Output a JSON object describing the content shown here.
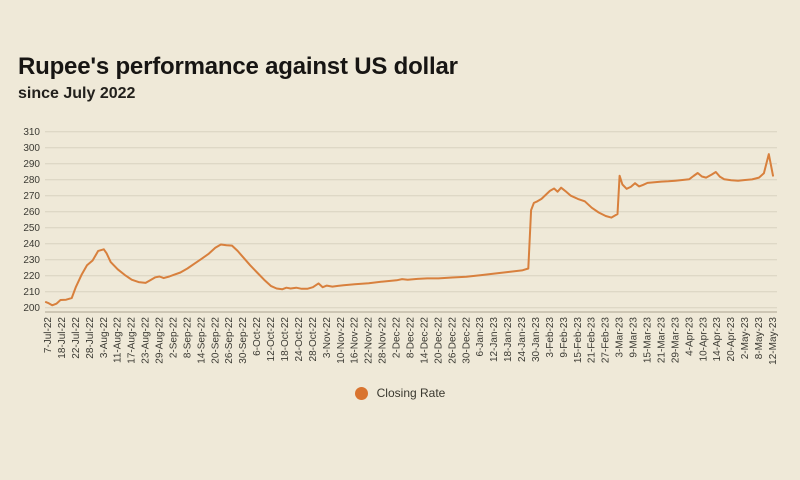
{
  "page": {
    "background": "#efe9d8"
  },
  "header": {
    "title": "Rupee's performance against US dollar",
    "subtitle": "since July 2022"
  },
  "legend": {
    "label": "Closing Rate",
    "marker_color": "#d9742f"
  },
  "chart_data": {
    "type": "line",
    "title": "Rupee's performance against US dollar",
    "subtitle": "since July 2022",
    "xlabel": "",
    "ylabel": "",
    "ylim": [
      200,
      310
    ],
    "y_ticks": [
      200,
      210,
      220,
      230,
      240,
      250,
      260,
      270,
      280,
      290,
      300,
      310
    ],
    "grid": "horizontal",
    "legend_position": "bottom-center",
    "line_color": "#d8803d",
    "grid_color": "#d8d2c0",
    "axis_color": "#b9b29e",
    "tick_text_color": "#3b3a33",
    "categories": [
      "7-Jul-22",
      "18-Jul-22",
      "22-Jul-22",
      "28-Jul-22",
      "3-Aug-22",
      "11-Aug-22",
      "17-Aug-22",
      "23-Aug-22",
      "29-Aug-22",
      "2-Sep-22",
      "8-Sep-22",
      "14-Sep-22",
      "20-Sep-22",
      "26-Sep-22",
      "30-Sep-22",
      "6-Oct-22",
      "12-Oct-22",
      "18-Oct-22",
      "24-Oct-22",
      "28-Oct-22",
      "3-Nov-22",
      "10-Nov-22",
      "16-Nov-22",
      "22-Nov-22",
      "28-Nov-22",
      "2-Dec-22",
      "8-Dec-22",
      "14-Dec-22",
      "20-Dec-22",
      "26-Dec-22",
      "30-Dec-22",
      "6-Jan-23",
      "12-Jan-23",
      "18-Jan-23",
      "24-Jan-23",
      "30-Jan-23",
      "3-Feb-23",
      "9-Feb-23",
      "15-Feb-23",
      "21-Feb-23",
      "27-Feb-23",
      "3-Mar-23",
      "9-Mar-23",
      "15-Mar-23",
      "21-Mar-23",
      "29-Mar-23",
      "4-Apr-23",
      "10-Apr-23",
      "14-Apr-23",
      "20-Apr-23",
      "2-May-23",
      "8-May-23",
      "12-May-23"
    ],
    "series": [
      {
        "name": "Closing Rate",
        "x_unit": "category_index_1_based_fractional",
        "points": [
          [
            0.85,
            203.5
          ],
          [
            1,
            203
          ],
          [
            1.3,
            201.5
          ],
          [
            1.6,
            202.5
          ],
          [
            1.9,
            204.8
          ],
          [
            2.3,
            205
          ],
          [
            2.7,
            206
          ],
          [
            3,
            213
          ],
          [
            3.4,
            220.5
          ],
          [
            3.8,
            226.5
          ],
          [
            4.2,
            229.5
          ],
          [
            4.6,
            235.5
          ],
          [
            5,
            236.5
          ],
          [
            5.2,
            234
          ],
          [
            5.5,
            228.5
          ],
          [
            6,
            224
          ],
          [
            6.5,
            220.5
          ],
          [
            7,
            217.5
          ],
          [
            7.5,
            216
          ],
          [
            8,
            215.5
          ],
          [
            8.3,
            217
          ],
          [
            8.7,
            219
          ],
          [
            9,
            219.5
          ],
          [
            9.3,
            218.5
          ],
          [
            9.7,
            219.5
          ],
          [
            10,
            220.5
          ],
          [
            10.5,
            222
          ],
          [
            11,
            224.5
          ],
          [
            11.5,
            227.5
          ],
          [
            12,
            230.5
          ],
          [
            12.5,
            233.5
          ],
          [
            13,
            237.5
          ],
          [
            13.4,
            239.5
          ],
          [
            13.8,
            239
          ],
          [
            14.2,
            238.8
          ],
          [
            14.6,
            235.5
          ],
          [
            15,
            231.5
          ],
          [
            15.5,
            226.5
          ],
          [
            16,
            222
          ],
          [
            16.5,
            217.5
          ],
          [
            17,
            213.5
          ],
          [
            17.4,
            212
          ],
          [
            17.8,
            211.5
          ],
          [
            18.1,
            212.5
          ],
          [
            18.4,
            212
          ],
          [
            18.8,
            212.5
          ],
          [
            19.2,
            211.8
          ],
          [
            19.6,
            211.8
          ],
          [
            20,
            212.8
          ],
          [
            20.4,
            215.2
          ],
          [
            20.7,
            212.8
          ],
          [
            21,
            213.8
          ],
          [
            21.4,
            213.2
          ],
          [
            21.8,
            213.6
          ],
          [
            22.2,
            214
          ],
          [
            23,
            214.6
          ],
          [
            24,
            215.3
          ],
          [
            25,
            216.3
          ],
          [
            26,
            217.1
          ],
          [
            26.4,
            217.9
          ],
          [
            26.8,
            217.5
          ],
          [
            27.5,
            218
          ],
          [
            28.2,
            218.3
          ],
          [
            29,
            218.3
          ],
          [
            30,
            218.9
          ],
          [
            31,
            219.3
          ],
          [
            32,
            220.3
          ],
          [
            33,
            221.3
          ],
          [
            34,
            222.3
          ],
          [
            35,
            223.3
          ],
          [
            35.45,
            224.5
          ],
          [
            35.65,
            261
          ],
          [
            35.85,
            265.5
          ],
          [
            36.1,
            266.5
          ],
          [
            36.4,
            268
          ],
          [
            36.7,
            270.5
          ],
          [
            37,
            273
          ],
          [
            37.3,
            274.5
          ],
          [
            37.55,
            272.5
          ],
          [
            37.8,
            275
          ],
          [
            38.1,
            273
          ],
          [
            38.5,
            270
          ],
          [
            39,
            268
          ],
          [
            39.5,
            266.5
          ],
          [
            40,
            262.5
          ],
          [
            40.5,
            259.5
          ],
          [
            41,
            257.3
          ],
          [
            41.4,
            256.3
          ],
          [
            41.7,
            257.8
          ],
          [
            41.85,
            258.5
          ],
          [
            42,
            282.5
          ],
          [
            42.2,
            277
          ],
          [
            42.5,
            274.3
          ],
          [
            42.8,
            275.5
          ],
          [
            43.1,
            277.8
          ],
          [
            43.4,
            275.8
          ],
          [
            43.7,
            276.8
          ],
          [
            44,
            278
          ],
          [
            44.5,
            278.4
          ],
          [
            45,
            278.8
          ],
          [
            45.5,
            279
          ],
          [
            46,
            279.4
          ],
          [
            46.5,
            279.8
          ],
          [
            47,
            280.3
          ],
          [
            47.3,
            282.3
          ],
          [
            47.6,
            284.2
          ],
          [
            47.9,
            282
          ],
          [
            48.2,
            281.3
          ],
          [
            48.6,
            283.2
          ],
          [
            48.9,
            284.8
          ],
          [
            49.2,
            281.8
          ],
          [
            49.5,
            280.3
          ],
          [
            50,
            279.6
          ],
          [
            50.5,
            279.4
          ],
          [
            51,
            279.8
          ],
          [
            51.5,
            280.2
          ],
          [
            52,
            281.3
          ],
          [
            52.35,
            284
          ],
          [
            52.7,
            296
          ],
          [
            53,
            282.5
          ]
        ]
      }
    ]
  }
}
